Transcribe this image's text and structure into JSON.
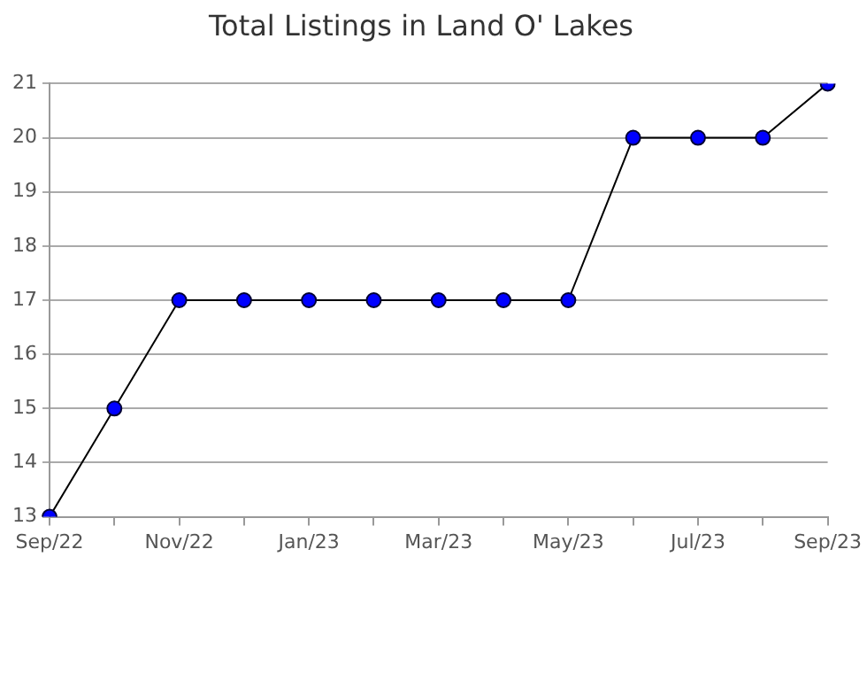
{
  "chart_data": {
    "type": "line",
    "title": "Total Listings in Land O' Lakes",
    "categories": [
      "Sep/22",
      null,
      "Nov/22",
      null,
      "Jan/23",
      null,
      "Mar/23",
      null,
      "May/23",
      null,
      "Jul/23",
      null,
      "Sep/23"
    ],
    "series": [
      {
        "color": "#0000ff",
        "values": [
          13,
          15,
          17,
          17,
          17,
          17,
          17,
          17,
          17,
          20,
          20,
          20,
          21
        ]
      }
    ],
    "ylim": [
      13,
      21
    ],
    "yticks": [
      13,
      14,
      15,
      16,
      17,
      18,
      19,
      20,
      21
    ],
    "grid": "y",
    "legend": false,
    "marker": "circle",
    "line_style": "solid"
  }
}
